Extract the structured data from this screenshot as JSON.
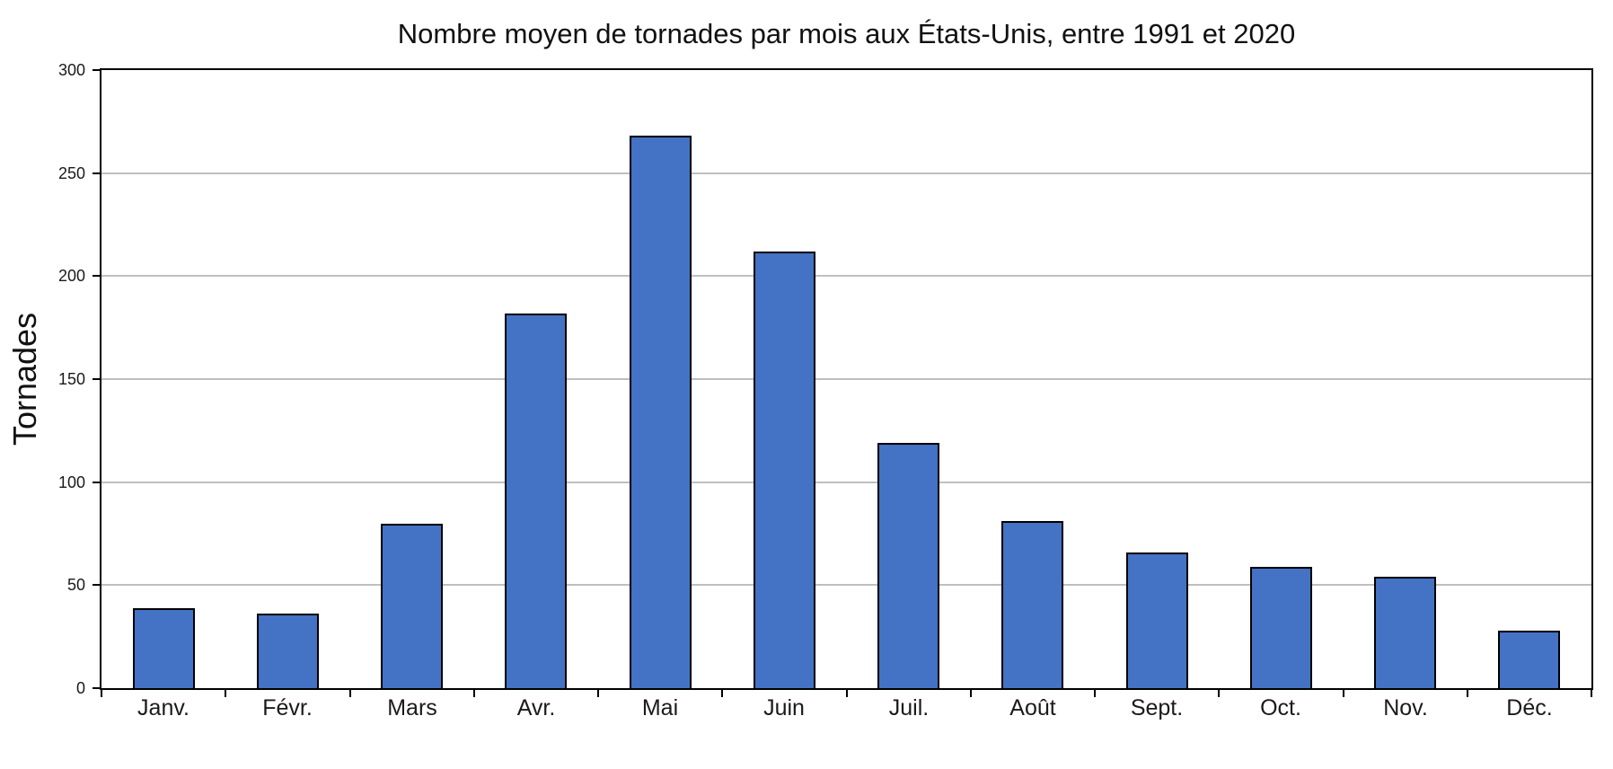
{
  "chart_data": {
    "type": "bar",
    "title": "Nombre moyen de tornades par mois aux États-Unis, entre 1991 et 2020",
    "xlabel": "",
    "ylabel": "Tornades",
    "categories": [
      "Janv.",
      "Févr.",
      "Mars",
      "Avr.",
      "Mai",
      "Juin",
      "Juil.",
      "Août",
      "Sept.",
      "Oct.",
      "Nov.",
      "Déc."
    ],
    "values": [
      39,
      36,
      80,
      182,
      268,
      212,
      119,
      81,
      66,
      59,
      54,
      28
    ],
    "ylim": [
      0,
      300
    ],
    "yticks": [
      0,
      50,
      100,
      150,
      200,
      250,
      300
    ],
    "grid": true,
    "legend_position": "none",
    "colors": {
      "bar_fill": "#4472C4",
      "bar_border": "#000000",
      "gridline": "#BFBFBF",
      "axis": "#000000",
      "text": "#1A1A1A",
      "background": "#FFFFFF"
    }
  }
}
